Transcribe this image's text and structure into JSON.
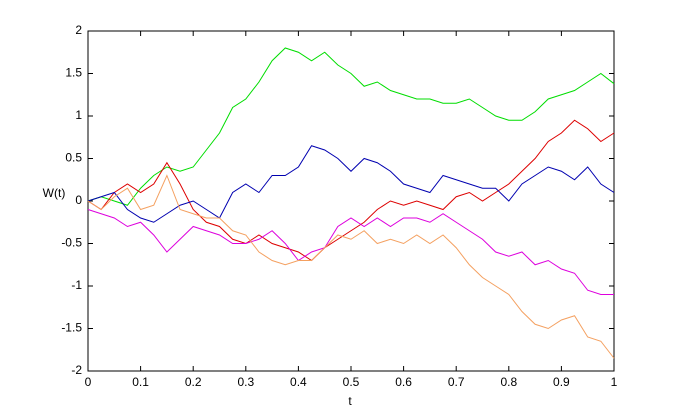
{
  "chart_data": {
    "type": "line",
    "xlabel": "t",
    "ylabel": "W(t)",
    "x": [
      0,
      0.025,
      0.05,
      0.075,
      0.1,
      0.125,
      0.15,
      0.175,
      0.2,
      0.225,
      0.25,
      0.275,
      0.3,
      0.325,
      0.35,
      0.375,
      0.4,
      0.425,
      0.45,
      0.475,
      0.5,
      0.525,
      0.55,
      0.575,
      0.6,
      0.625,
      0.65,
      0.675,
      0.7,
      0.725,
      0.75,
      0.775,
      0.8,
      0.825,
      0.85,
      0.875,
      0.9,
      0.925,
      0.95,
      0.975,
      1
    ],
    "series": [
      {
        "color": "#00dd00",
        "values": [
          0,
          0.05,
          0,
          -0.05,
          0.15,
          0.3,
          0.4,
          0.35,
          0.4,
          0.6,
          0.8,
          1.1,
          1.2,
          1.4,
          1.65,
          1.8,
          1.75,
          1.65,
          1.75,
          1.6,
          1.5,
          1.35,
          1.4,
          1.3,
          1.25,
          1.2,
          1.2,
          1.15,
          1.15,
          1.2,
          1.1,
          1.0,
          0.95,
          0.95,
          1.05,
          1.2,
          1.25,
          1.3,
          1.4,
          1.5,
          1.38
        ]
      },
      {
        "color": "#dd0000",
        "values": [
          0,
          -0.1,
          0.1,
          0.2,
          0.1,
          0.2,
          0.45,
          0.2,
          -0.1,
          -0.25,
          -0.3,
          -0.45,
          -0.5,
          -0.4,
          -0.5,
          -0.55,
          -0.6,
          -0.7,
          -0.55,
          -0.45,
          -0.35,
          -0.25,
          -0.1,
          0,
          -0.05,
          0,
          -0.05,
          -0.1,
          0.05,
          0.1,
          0,
          0.1,
          0.2,
          0.35,
          0.5,
          0.7,
          0.8,
          0.95,
          0.85,
          0.7,
          0.8
        ]
      },
      {
        "color": "#0000b0",
        "values": [
          0,
          0.05,
          0.1,
          -0.1,
          -0.2,
          -0.25,
          -0.15,
          -0.05,
          0,
          -0.1,
          -0.2,
          0.1,
          0.2,
          0.1,
          0.3,
          0.3,
          0.4,
          0.65,
          0.6,
          0.5,
          0.35,
          0.5,
          0.45,
          0.35,
          0.2,
          0.15,
          0.1,
          0.3,
          0.25,
          0.2,
          0.15,
          0.15,
          0,
          0.2,
          0.3,
          0.4,
          0.35,
          0.25,
          0.4,
          0.2,
          0.1
        ]
      },
      {
        "color": "#dd00dd",
        "values": [
          -0.1,
          -0.15,
          -0.2,
          -0.3,
          -0.25,
          -0.4,
          -0.6,
          -0.45,
          -0.3,
          -0.35,
          -0.4,
          -0.5,
          -0.5,
          -0.45,
          -0.35,
          -0.5,
          -0.7,
          -0.6,
          -0.55,
          -0.3,
          -0.2,
          -0.3,
          -0.2,
          -0.3,
          -0.2,
          -0.2,
          -0.25,
          -0.15,
          -0.25,
          -0.35,
          -0.45,
          -0.6,
          -0.65,
          -0.6,
          -0.75,
          -0.7,
          -0.8,
          -0.85,
          -1.05,
          -1.1,
          -1.1
        ]
      },
      {
        "color": "#f4a060",
        "values": [
          0,
          -0.1,
          0.05,
          0.15,
          -0.1,
          -0.05,
          0.3,
          -0.1,
          -0.15,
          -0.2,
          -0.2,
          -0.35,
          -0.4,
          -0.6,
          -0.7,
          -0.75,
          -0.7,
          -0.7,
          -0.55,
          -0.4,
          -0.45,
          -0.35,
          -0.5,
          -0.45,
          -0.5,
          -0.4,
          -0.5,
          -0.4,
          -0.55,
          -0.75,
          -0.9,
          -1.0,
          -1.1,
          -1.3,
          -1.45,
          -1.5,
          -1.4,
          -1.35,
          -1.6,
          -1.65,
          -1.85
        ]
      }
    ],
    "xlim": [
      0,
      1
    ],
    "xticks": [
      0,
      0.1,
      0.2,
      0.3,
      0.4,
      0.5,
      0.6,
      0.7,
      0.8,
      0.9,
      1
    ],
    "ylim": [
      -2,
      2
    ],
    "yticks": [
      -2,
      -1.5,
      -1,
      -0.5,
      0,
      0.5,
      1,
      1.5,
      2
    ],
    "grid": false
  }
}
